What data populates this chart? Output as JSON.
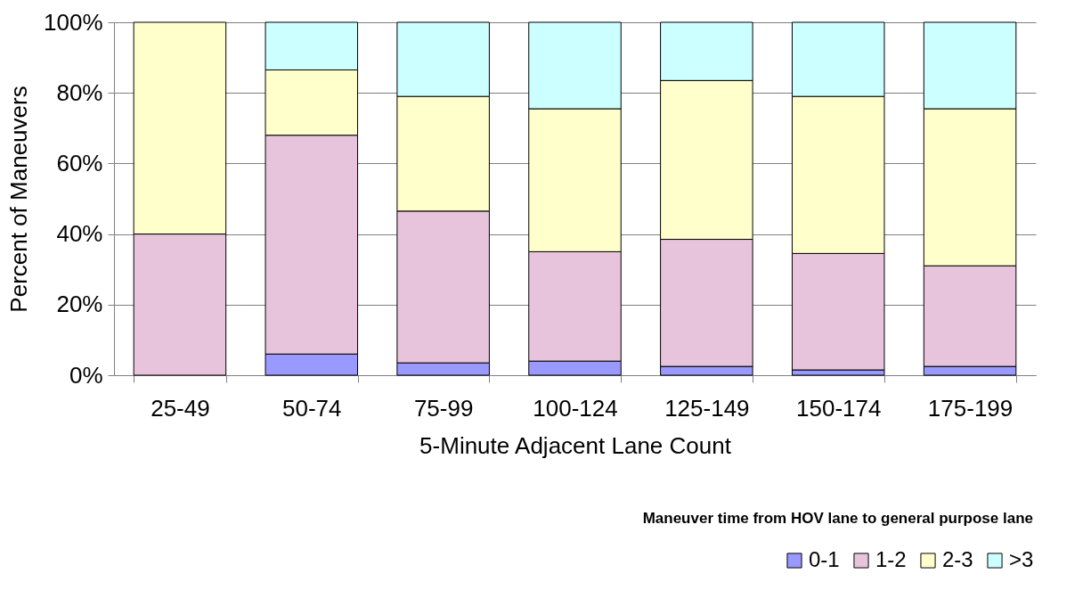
{
  "chart_data": {
    "type": "bar",
    "stacked": true,
    "xlabel": "5-Minute Adjacent Lane Count",
    "ylabel": "Percent of Maneuvers",
    "legend_title": "Maneuver time from HOV lane to general purpose lane",
    "categories": [
      "25-49",
      "50-74",
      "75-99",
      "100-124",
      "125-149",
      "150-174",
      "175-199"
    ],
    "series": [
      {
        "name": "0-1",
        "color": "#9999ff",
        "values": [
          null,
          6,
          3.5,
          4,
          2.5,
          1.5,
          2.5
        ]
      },
      {
        "name": "1-2",
        "color": "#e8c4dc",
        "values": [
          40,
          62,
          43,
          31,
          36,
          33,
          28.5
        ]
      },
      {
        "name": "2-3",
        "color": "#ffffcc",
        "values": [
          60,
          18.5,
          32.5,
          40.5,
          45,
          44.5,
          44.5
        ]
      },
      {
        "name": ">3",
        "color": "#ccffff",
        "values": [
          null,
          13.5,
          21,
          24.5,
          16.5,
          21,
          24.5
        ]
      }
    ],
    "ylim": [
      0,
      100
    ],
    "yticks": [
      {
        "value": 0,
        "label": "0%"
      },
      {
        "value": 20,
        "label": "20%"
      },
      {
        "value": 40,
        "label": "40%"
      },
      {
        "value": 60,
        "label": "60%"
      },
      {
        "value": 80,
        "label": "80%"
      },
      {
        "value": 100,
        "label": "100%"
      }
    ],
    "grid": "y",
    "legend": "bottom right"
  }
}
